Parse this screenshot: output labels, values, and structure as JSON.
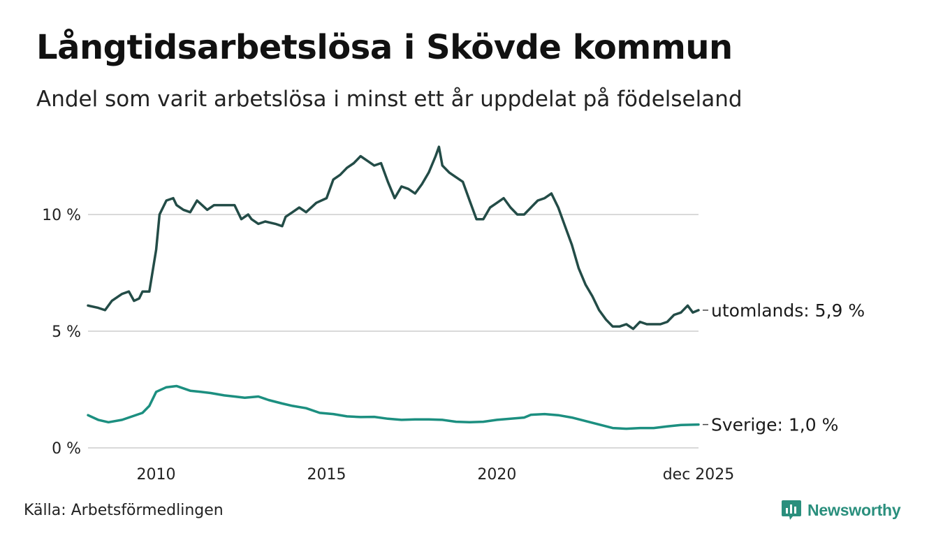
{
  "header": {
    "title": "Långtidsarbetslösa i Skövde kommun",
    "subtitle": "Andel som varit arbetslösa i minst ett år uppdelat på födelseland"
  },
  "footer": {
    "source": "Källa: Arbetsförmedlingen",
    "brand": "Newsworthy"
  },
  "colors": {
    "utomlands": "#234c47",
    "sverige": "#1c8f80",
    "grid": "#d9d9d9",
    "brand": "#2a8f7d"
  },
  "chart_data": {
    "type": "line",
    "title": "Långtidsarbetslösa i Skövde kommun",
    "xlabel": "",
    "ylabel": "",
    "xlim": [
      2008.0,
      2025.917
    ],
    "ylim": [
      0,
      13.2
    ],
    "grid": "horizontal",
    "y_ticks": [
      {
        "value": 0,
        "label": "0 %"
      },
      {
        "value": 5,
        "label": "5 %"
      },
      {
        "value": 10,
        "label": "10 %"
      }
    ],
    "x_ticks": [
      {
        "value": 2010,
        "label": "2010"
      },
      {
        "value": 2015,
        "label": "2015"
      },
      {
        "value": 2020,
        "label": "2020"
      },
      {
        "value": 2025.917,
        "label": "dec 2025"
      }
    ],
    "series": [
      {
        "name": "utomlands",
        "end_label": "utomlands: 5,9 %",
        "points": [
          [
            2008.0,
            6.1
          ],
          [
            2008.3,
            6.0
          ],
          [
            2008.5,
            5.9
          ],
          [
            2008.7,
            6.3
          ],
          [
            2009.0,
            6.6
          ],
          [
            2009.2,
            6.7
          ],
          [
            2009.35,
            6.3
          ],
          [
            2009.5,
            6.4
          ],
          [
            2009.6,
            6.7
          ],
          [
            2009.8,
            6.7
          ],
          [
            2010.0,
            8.5
          ],
          [
            2010.1,
            10.0
          ],
          [
            2010.3,
            10.6
          ],
          [
            2010.5,
            10.7
          ],
          [
            2010.6,
            10.4
          ],
          [
            2010.8,
            10.2
          ],
          [
            2011.0,
            10.1
          ],
          [
            2011.2,
            10.6
          ],
          [
            2011.5,
            10.2
          ],
          [
            2011.7,
            10.4
          ],
          [
            2012.0,
            10.4
          ],
          [
            2012.3,
            10.4
          ],
          [
            2012.5,
            9.8
          ],
          [
            2012.7,
            10.0
          ],
          [
            2012.8,
            9.8
          ],
          [
            2013.0,
            9.6
          ],
          [
            2013.2,
            9.7
          ],
          [
            2013.5,
            9.6
          ],
          [
            2013.7,
            9.5
          ],
          [
            2013.8,
            9.9
          ],
          [
            2014.0,
            10.1
          ],
          [
            2014.2,
            10.3
          ],
          [
            2014.4,
            10.1
          ],
          [
            2014.7,
            10.5
          ],
          [
            2015.0,
            10.7
          ],
          [
            2015.2,
            11.5
          ],
          [
            2015.4,
            11.7
          ],
          [
            2015.6,
            12.0
          ],
          [
            2015.8,
            12.2
          ],
          [
            2016.0,
            12.5
          ],
          [
            2016.2,
            12.3
          ],
          [
            2016.4,
            12.1
          ],
          [
            2016.6,
            12.2
          ],
          [
            2016.8,
            11.4
          ],
          [
            2017.0,
            10.7
          ],
          [
            2017.2,
            11.2
          ],
          [
            2017.4,
            11.1
          ],
          [
            2017.6,
            10.9
          ],
          [
            2017.8,
            11.3
          ],
          [
            2018.0,
            11.8
          ],
          [
            2018.2,
            12.5
          ],
          [
            2018.3,
            12.9
          ],
          [
            2018.4,
            12.1
          ],
          [
            2018.6,
            11.8
          ],
          [
            2018.8,
            11.6
          ],
          [
            2019.0,
            11.4
          ],
          [
            2019.2,
            10.6
          ],
          [
            2019.4,
            9.8
          ],
          [
            2019.6,
            9.8
          ],
          [
            2019.8,
            10.3
          ],
          [
            2020.0,
            10.5
          ],
          [
            2020.2,
            10.7
          ],
          [
            2020.4,
            10.3
          ],
          [
            2020.6,
            10.0
          ],
          [
            2020.8,
            10.0
          ],
          [
            2021.0,
            10.3
          ],
          [
            2021.2,
            10.6
          ],
          [
            2021.4,
            10.7
          ],
          [
            2021.6,
            10.9
          ],
          [
            2021.8,
            10.3
          ],
          [
            2022.0,
            9.5
          ],
          [
            2022.2,
            8.7
          ],
          [
            2022.4,
            7.7
          ],
          [
            2022.6,
            7.0
          ],
          [
            2022.8,
            6.5
          ],
          [
            2023.0,
            5.9
          ],
          [
            2023.2,
            5.5
          ],
          [
            2023.4,
            5.2
          ],
          [
            2023.6,
            5.2
          ],
          [
            2023.8,
            5.3
          ],
          [
            2024.0,
            5.1
          ],
          [
            2024.2,
            5.4
          ],
          [
            2024.4,
            5.3
          ],
          [
            2024.6,
            5.3
          ],
          [
            2024.8,
            5.3
          ],
          [
            2025.0,
            5.4
          ],
          [
            2025.2,
            5.7
          ],
          [
            2025.4,
            5.8
          ],
          [
            2025.6,
            6.1
          ],
          [
            2025.75,
            5.8
          ],
          [
            2025.917,
            5.9
          ]
        ]
      },
      {
        "name": "Sverige",
        "end_label": "Sverige: 1,0 %",
        "points": [
          [
            2008.0,
            1.4
          ],
          [
            2008.3,
            1.2
          ],
          [
            2008.6,
            1.1
          ],
          [
            2009.0,
            1.2
          ],
          [
            2009.3,
            1.35
          ],
          [
            2009.6,
            1.5
          ],
          [
            2009.8,
            1.8
          ],
          [
            2010.0,
            2.4
          ],
          [
            2010.3,
            2.6
          ],
          [
            2010.6,
            2.65
          ],
          [
            2011.0,
            2.45
          ],
          [
            2011.3,
            2.4
          ],
          [
            2011.6,
            2.35
          ],
          [
            2012.0,
            2.25
          ],
          [
            2012.3,
            2.2
          ],
          [
            2012.6,
            2.15
          ],
          [
            2013.0,
            2.2
          ],
          [
            2013.3,
            2.05
          ],
          [
            2013.7,
            1.9
          ],
          [
            2014.0,
            1.8
          ],
          [
            2014.4,
            1.7
          ],
          [
            2014.8,
            1.5
          ],
          [
            2015.2,
            1.45
          ],
          [
            2015.6,
            1.35
          ],
          [
            2016.0,
            1.32
          ],
          [
            2016.4,
            1.33
          ],
          [
            2016.8,
            1.25
          ],
          [
            2017.2,
            1.2
          ],
          [
            2017.6,
            1.22
          ],
          [
            2018.0,
            1.22
          ],
          [
            2018.4,
            1.2
          ],
          [
            2018.8,
            1.12
          ],
          [
            2019.2,
            1.1
          ],
          [
            2019.6,
            1.12
          ],
          [
            2020.0,
            1.2
          ],
          [
            2020.4,
            1.25
          ],
          [
            2020.8,
            1.3
          ],
          [
            2021.0,
            1.42
          ],
          [
            2021.4,
            1.45
          ],
          [
            2021.8,
            1.4
          ],
          [
            2022.2,
            1.3
          ],
          [
            2022.6,
            1.15
          ],
          [
            2023.0,
            1.0
          ],
          [
            2023.4,
            0.85
          ],
          [
            2023.8,
            0.82
          ],
          [
            2024.2,
            0.85
          ],
          [
            2024.6,
            0.85
          ],
          [
            2025.0,
            0.92
          ],
          [
            2025.4,
            0.98
          ],
          [
            2025.917,
            1.0
          ]
        ]
      }
    ]
  }
}
